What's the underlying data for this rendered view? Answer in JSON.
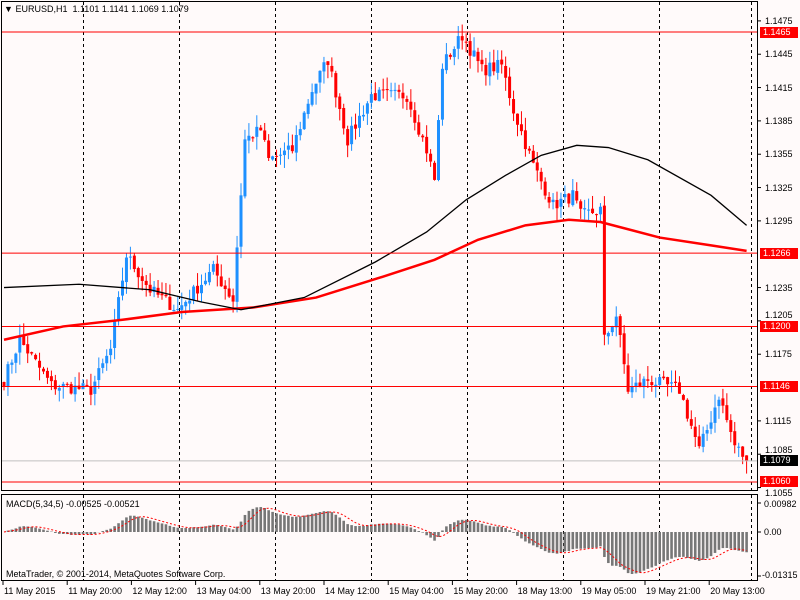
{
  "header": {
    "symbol": "EURUSD,H1",
    "ohlc": "1.1101 1.1141 1.1069 1.1079"
  },
  "macd": {
    "label": "MACD(5,34,5) -0.00525 -0.00521",
    "scale": [
      "0.00982",
      "0.00",
      "-0.01315"
    ],
    "max": 0.00982,
    "min": -0.01315
  },
  "copyright": "MetaTrader, © 2001-2014, MetaQuotes Software Corp.",
  "colors": {
    "bull": "#1e90ff",
    "bear": "#ff0000",
    "level": "#ff0000",
    "ma_fast": "#000000",
    "ma_slow": "#ff0000",
    "histogram": "#777777",
    "background": "#fffafa"
  },
  "chart_data": {
    "type": "candlestick",
    "price_range": [
      1.1052,
      1.1482
    ],
    "price_ticks": [
      "1.1475",
      "1.1445",
      "1.1415",
      "1.1385",
      "1.1355",
      "1.1325",
      "1.1295",
      "1.1235",
      "1.1205",
      "1.1175",
      "1.1115",
      "1.1085",
      "1.1055"
    ],
    "levels": [
      {
        "price": "1.1465"
      },
      {
        "price": "1.1266"
      },
      {
        "price": "1.1200"
      },
      {
        "price": "1.1146"
      },
      {
        "price": "1.1060"
      }
    ],
    "current_price": "1.1079",
    "bars": 190,
    "close_path": [
      [
        0,
        1.1152
      ],
      [
        4,
        1.1188
      ],
      [
        12,
        1.1147
      ],
      [
        22,
        1.1143
      ],
      [
        27,
        1.1179
      ],
      [
        31,
        1.1264
      ],
      [
        37,
        1.1233
      ],
      [
        44,
        1.1215
      ],
      [
        53,
        1.1251
      ],
      [
        58,
        1.1224
      ],
      [
        61,
        1.1368
      ],
      [
        65,
        1.1377
      ],
      [
        67,
        1.135
      ],
      [
        73,
        1.1359
      ],
      [
        78,
        1.1413
      ],
      [
        82,
        1.144
      ],
      [
        87,
        1.1368
      ],
      [
        93,
        1.1408
      ],
      [
        102,
        1.1408
      ],
      [
        107,
        1.1359
      ],
      [
        109,
        1.1332
      ],
      [
        111,
        1.1435
      ],
      [
        116,
        1.1462
      ],
      [
        121,
        1.1431
      ],
      [
        126,
        1.1435
      ],
      [
        129,
        1.1395
      ],
      [
        134,
        1.1345
      ],
      [
        139,
        1.1309
      ],
      [
        144,
        1.1318
      ],
      [
        146,
        1.13
      ],
      [
        151,
        1.1305
      ],
      [
        152,
        1.1188
      ],
      [
        155,
        1.121
      ],
      [
        158,
        1.1143
      ],
      [
        163,
        1.1152
      ],
      [
        171,
        1.1143
      ],
      [
        176,
        1.1089
      ],
      [
        178,
        1.1107
      ],
      [
        181,
        1.1138
      ],
      [
        185,
        1.1093
      ],
      [
        188,
        1.108
      ]
    ],
    "ma_fast": [
      [
        0,
        1.1235
      ],
      [
        19,
        1.1238
      ],
      [
        37,
        1.1233
      ],
      [
        50,
        1.1222
      ],
      [
        60,
        1.1215
      ],
      [
        76,
        1.1226
      ],
      [
        94,
        1.1258
      ],
      [
        107,
        1.1285
      ],
      [
        117,
        1.1314
      ],
      [
        127,
        1.1336
      ],
      [
        136,
        1.1354
      ],
      [
        145,
        1.1363
      ],
      [
        153,
        1.1361
      ],
      [
        163,
        1.135
      ],
      [
        179,
        1.1318
      ],
      [
        188,
        1.1291
      ]
    ],
    "ma_slow": [
      [
        0,
        1.1188
      ],
      [
        15,
        1.12
      ],
      [
        30,
        1.1206
      ],
      [
        45,
        1.1213
      ],
      [
        63,
        1.1217
      ],
      [
        79,
        1.1226
      ],
      [
        97,
        1.1246
      ],
      [
        109,
        1.126
      ],
      [
        120,
        1.1278
      ],
      [
        132,
        1.1291
      ],
      [
        143,
        1.1296
      ],
      [
        151,
        1.1294
      ],
      [
        166,
        1.128
      ],
      [
        179,
        1.1273
      ],
      [
        188,
        1.1268
      ]
    ],
    "x_labels": [
      "11 May 2015",
      "11 May 20:00",
      "12 May 12:00",
      "13 May 04:00",
      "13 May 20:00",
      "14 May 12:00",
      "15 May 04:00",
      "15 May 20:00",
      "18 May 13:00",
      "19 May 05:00",
      "19 May 21:00",
      "20 May 13:00"
    ]
  }
}
